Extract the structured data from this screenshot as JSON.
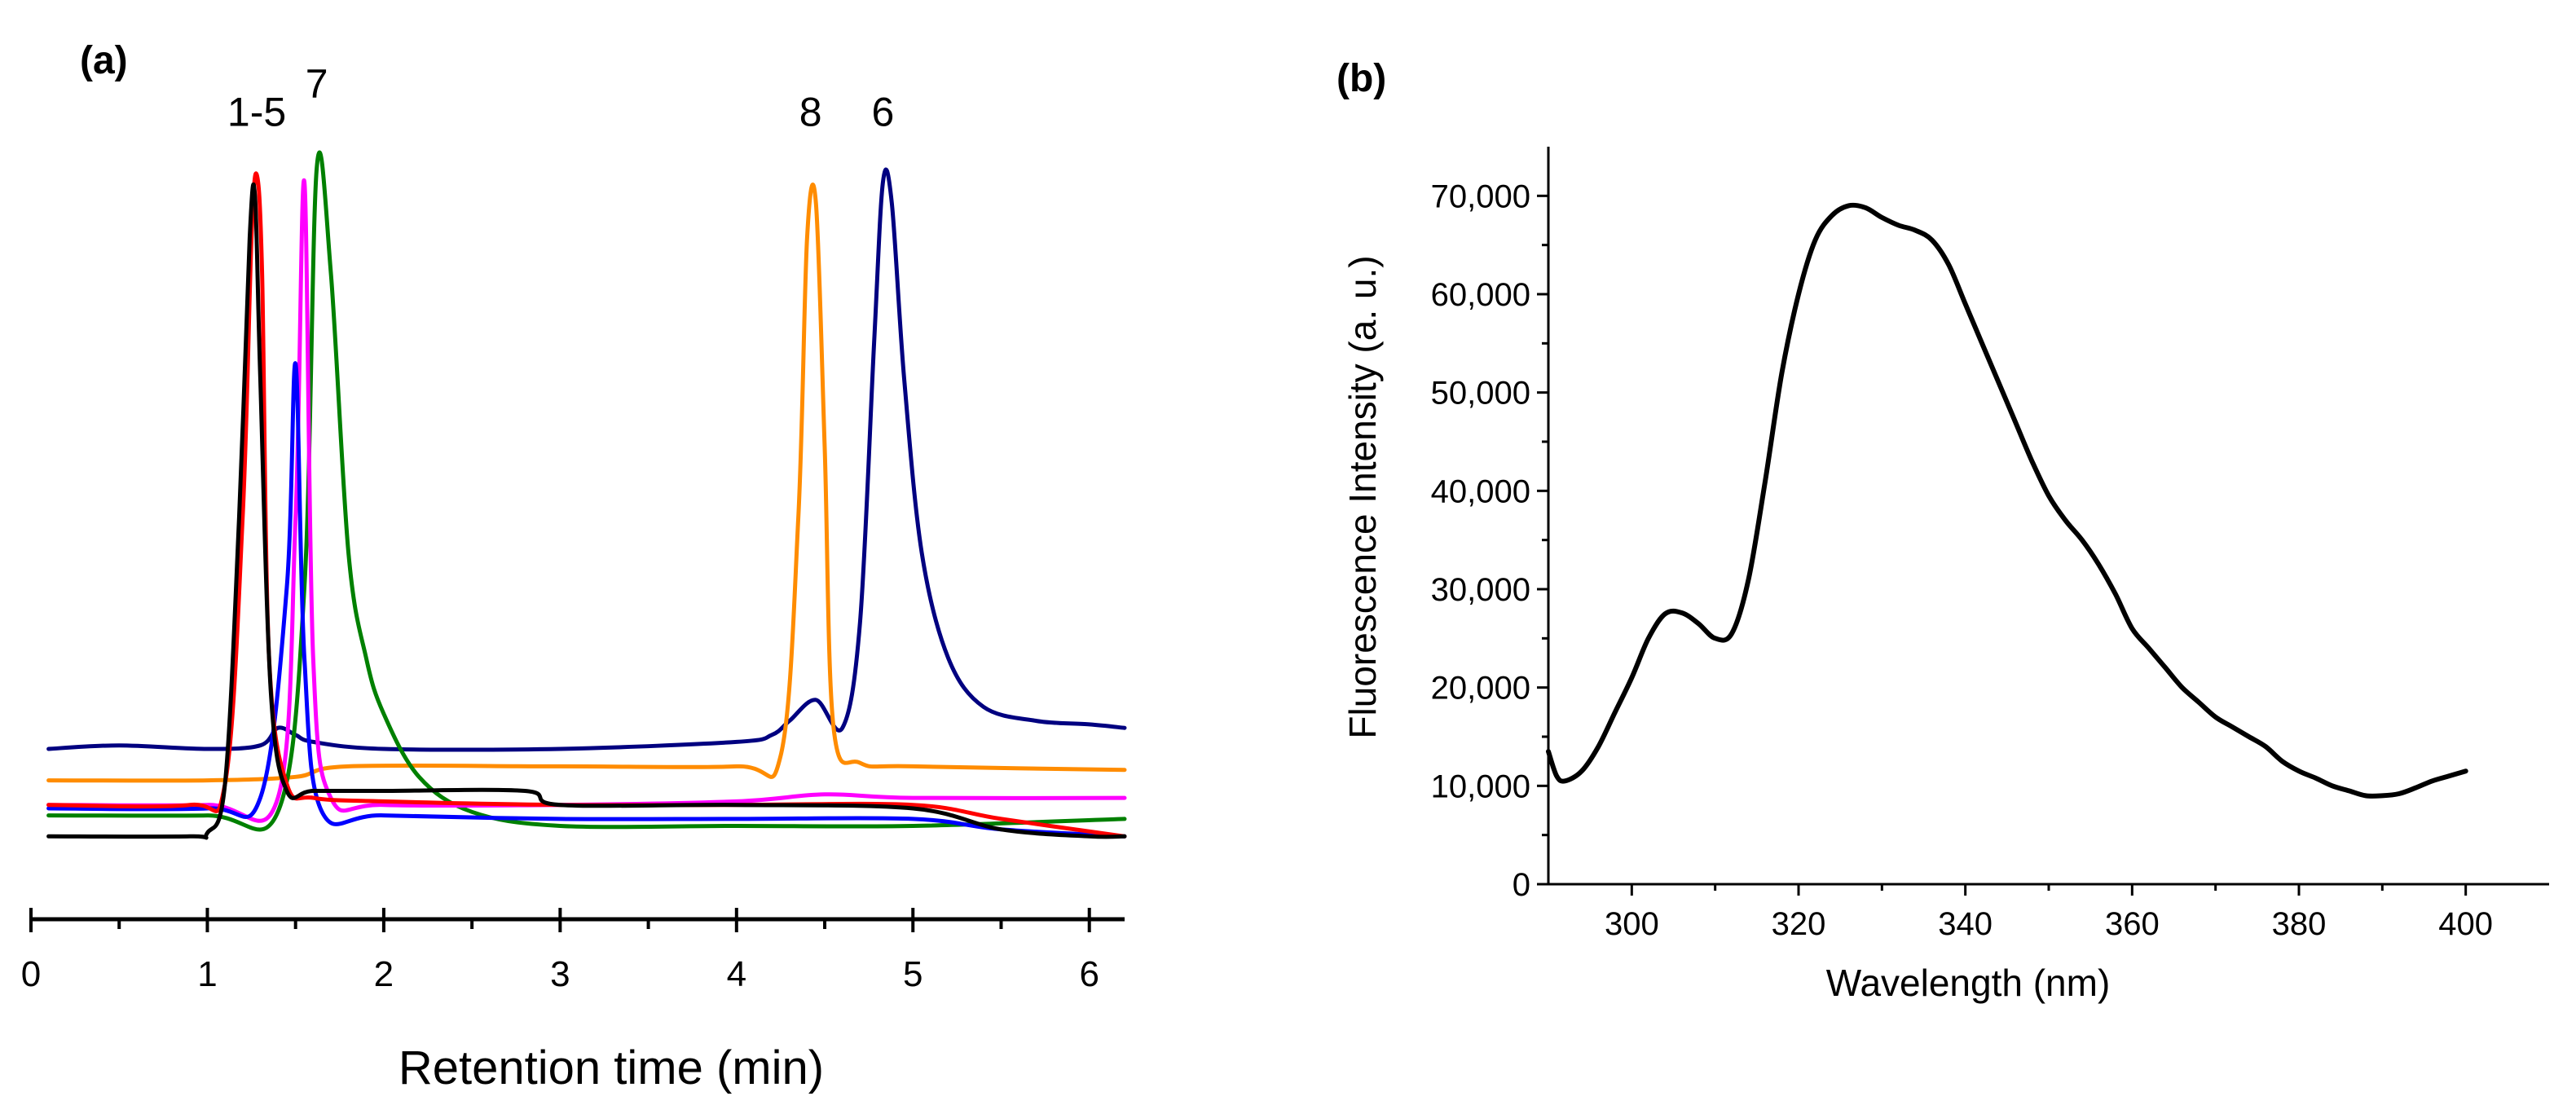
{
  "chart_data": [
    {
      "type": "line",
      "panel_label": "(a)",
      "xlabel": "Retention time (min)",
      "ylabel": "",
      "xlim": [
        0,
        6.2
      ],
      "ylim": [
        0,
        1.1
      ],
      "x_ticks": [
        "0",
        "1",
        "2",
        "3",
        "4",
        "5",
        "6"
      ],
      "x_tick_values": [
        0,
        1,
        2,
        3,
        4,
        5,
        6
      ],
      "show_y_axis": false,
      "annotations": [
        {
          "text": "1-5",
          "x": 1.28,
          "y": 1.06
        },
        {
          "text": "7",
          "x": 1.62,
          "y": 1.1
        },
        {
          "text": "8",
          "x": 4.42,
          "y": 1.06
        },
        {
          "text": "6",
          "x": 4.83,
          "y": 1.06
        }
      ],
      "series": [
        {
          "name": "navy",
          "color": "#000080",
          "x": [
            0.1,
            0.5,
            1.0,
            1.3,
            1.4,
            1.5,
            1.6,
            2.0,
            3.0,
            4.0,
            4.2,
            4.3,
            4.45,
            4.6,
            4.7,
            4.78,
            4.83,
            4.88,
            4.95,
            5.05,
            5.2,
            5.4,
            5.7,
            6.0,
            6.2
          ],
          "y": [
            0.17,
            0.175,
            0.17,
            0.175,
            0.2,
            0.19,
            0.18,
            0.17,
            0.17,
            0.18,
            0.19,
            0.21,
            0.24,
            0.2,
            0.35,
            0.75,
            0.98,
            0.95,
            0.7,
            0.45,
            0.3,
            0.23,
            0.21,
            0.205,
            0.2
          ]
        },
        {
          "name": "orange",
          "color": "#FF8C00",
          "x": [
            0.1,
            1.0,
            1.5,
            1.8,
            3.0,
            4.0,
            4.25,
            4.35,
            4.4,
            4.45,
            4.5,
            4.55,
            4.7,
            5.0,
            6.2
          ],
          "y": [
            0.125,
            0.125,
            0.13,
            0.145,
            0.145,
            0.145,
            0.16,
            0.5,
            0.9,
            0.95,
            0.6,
            0.2,
            0.15,
            0.145,
            0.14
          ]
        },
        {
          "name": "green",
          "color": "#008000",
          "x": [
            0.1,
            1.0,
            1.4,
            1.55,
            1.62,
            1.7,
            1.8,
            1.9,
            2.0,
            2.2,
            2.5,
            3.0,
            4.0,
            5.0,
            6.2
          ],
          "y": [
            0.075,
            0.075,
            0.08,
            0.4,
            1.0,
            0.85,
            0.45,
            0.3,
            0.22,
            0.13,
            0.08,
            0.06,
            0.06,
            0.06,
            0.07
          ]
        },
        {
          "name": "magenta",
          "color": "#FF00FF",
          "x": [
            0.1,
            1.0,
            1.4,
            1.5,
            1.55,
            1.6,
            1.7,
            2.0,
            3.0,
            4.0,
            4.5,
            5.0,
            6.2
          ],
          "y": [
            0.09,
            0.09,
            0.1,
            0.5,
            0.98,
            0.3,
            0.1,
            0.09,
            0.09,
            0.095,
            0.105,
            0.1,
            0.1
          ]
        },
        {
          "name": "blue",
          "color": "#0000FF",
          "x": [
            0.1,
            1.0,
            1.3,
            1.45,
            1.5,
            1.55,
            1.65,
            2.0,
            3.0,
            4.0,
            5.0,
            5.5,
            6.2
          ],
          "y": [
            0.085,
            0.085,
            0.1,
            0.4,
            0.72,
            0.3,
            0.08,
            0.075,
            0.07,
            0.07,
            0.07,
            0.055,
            0.045
          ]
        },
        {
          "name": "red",
          "color": "#FF0000",
          "x": [
            0.1,
            0.9,
            1.1,
            1.2,
            1.25,
            1.28,
            1.31,
            1.35,
            1.45,
            1.6,
            2.0,
            3.0,
            4.0,
            5.0,
            5.5,
            6.2
          ],
          "y": [
            0.09,
            0.09,
            0.12,
            0.5,
            0.9,
            0.99,
            0.85,
            0.3,
            0.12,
            0.1,
            0.095,
            0.09,
            0.09,
            0.09,
            0.07,
            0.045
          ]
        },
        {
          "name": "black",
          "color": "#000000",
          "x": [
            0.1,
            0.9,
            1.0,
            1.1,
            1.18,
            1.24,
            1.27,
            1.3,
            1.36,
            1.45,
            1.6,
            2.0,
            2.8,
            3.0,
            4.0,
            5.0,
            5.5,
            6.0,
            6.2
          ],
          "y": [
            0.045,
            0.045,
            0.05,
            0.12,
            0.5,
            0.9,
            0.96,
            0.7,
            0.25,
            0.11,
            0.11,
            0.11,
            0.11,
            0.09,
            0.09,
            0.085,
            0.055,
            0.045,
            0.045
          ]
        }
      ]
    },
    {
      "type": "line",
      "panel_label": "(b)",
      "xlabel": "Wavelength (nm)",
      "ylabel": "Fluorescence Intensity (a. u.)",
      "xlim": [
        290,
        410
      ],
      "ylim": [
        0,
        75000
      ],
      "x_ticks": [
        "300",
        "320",
        "340",
        "360",
        "380",
        "400"
      ],
      "x_tick_values": [
        300,
        320,
        340,
        360,
        380,
        400
      ],
      "y_ticks": [
        "0",
        "10,000",
        "20,000",
        "30,000",
        "40,000",
        "50,000",
        "60,000",
        "70,000"
      ],
      "y_tick_values": [
        0,
        10000,
        20000,
        30000,
        40000,
        50000,
        60000,
        70000
      ],
      "series": [
        {
          "name": "spectrum",
          "color": "#000000",
          "x": [
            290,
            291,
            292,
            294,
            296,
            298,
            300,
            302,
            304,
            306,
            308,
            310,
            312,
            314,
            316,
            318,
            320,
            322,
            324,
            326,
            328,
            330,
            332,
            334,
            336,
            338,
            340,
            342,
            344,
            346,
            348,
            350,
            352,
            354,
            356,
            358,
            360,
            362,
            364,
            366,
            368,
            370,
            372,
            374,
            376,
            378,
            380,
            382,
            384,
            386,
            388,
            390,
            392,
            394,
            396,
            398,
            400
          ],
          "y": [
            13500,
            11000,
            10500,
            11500,
            14000,
            17500,
            21000,
            25000,
            27500,
            27600,
            26500,
            25000,
            25500,
            31000,
            41000,
            52000,
            60000,
            65500,
            68000,
            69000,
            68800,
            67800,
            67000,
            66500,
            65500,
            63000,
            59000,
            55000,
            51000,
            47000,
            43000,
            39500,
            37000,
            35000,
            32500,
            29500,
            26000,
            24000,
            22000,
            20000,
            18500,
            17000,
            16000,
            15000,
            14000,
            12500,
            11500,
            10800,
            10000,
            9500,
            9000,
            9000,
            9200,
            9800,
            10500,
            11000,
            11500
          ]
        }
      ]
    }
  ]
}
